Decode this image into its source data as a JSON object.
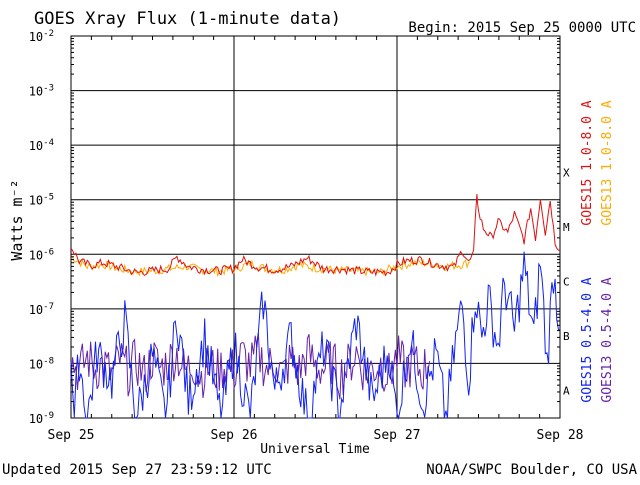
{
  "chart_data": {
    "type": "line",
    "title": "GOES Xray Flux (1-minute data)",
    "begin_text": "Begin:  2015 Sep 25 0000 UTC",
    "xlabel": "Universal Time",
    "ylabel": "Watts m⁻²",
    "x_range_days": [
      0,
      3
    ],
    "x_tick_labels": [
      "Sep 25",
      "Sep 26",
      "Sep 27",
      "Sep 28"
    ],
    "y_scale": "log",
    "y_range": [
      1e-09,
      0.01
    ],
    "y_tick_labels": [
      {
        "base": "10",
        "exp": "-2"
      },
      {
        "base": "10",
        "exp": "-3"
      },
      {
        "base": "10",
        "exp": "-4"
      },
      {
        "base": "10",
        "exp": "-5"
      },
      {
        "base": "10",
        "exp": "-6"
      },
      {
        "base": "10",
        "exp": "-7"
      },
      {
        "base": "10",
        "exp": "-8"
      },
      {
        "base": "10",
        "exp": "-9"
      }
    ],
    "flare_classes": [
      "X",
      "M",
      "C",
      "B",
      "A"
    ],
    "grid": "horizontal decades",
    "legend_placement": "right",
    "series": [
      {
        "name": "GOES15 1.0-8.0 A",
        "color": "#dd1111",
        "points": [
          [
            0.0,
            1.4e-06
          ],
          [
            0.05,
            7.5e-07
          ],
          [
            0.12,
            6.2e-07
          ],
          [
            0.2,
            7e-07
          ],
          [
            0.3,
            5.7e-07
          ],
          [
            0.4,
            4.6e-07
          ],
          [
            0.5,
            5e-07
          ],
          [
            0.6,
            5.5e-07
          ],
          [
            0.65,
            9e-07
          ],
          [
            0.72,
            6e-07
          ],
          [
            0.8,
            5.3e-07
          ],
          [
            0.9,
            5e-07
          ],
          [
            1.0,
            5.5e-07
          ],
          [
            1.05,
            8e-07
          ],
          [
            1.15,
            5.8e-07
          ],
          [
            1.25,
            5.2e-07
          ],
          [
            1.35,
            6e-07
          ],
          [
            1.45,
            8.5e-07
          ],
          [
            1.55,
            5.4e-07
          ],
          [
            1.65,
            5.4e-07
          ],
          [
            1.75,
            5e-07
          ],
          [
            1.85,
            4.7e-07
          ],
          [
            1.95,
            4.8e-07
          ],
          [
            2.0,
            6.5e-07
          ],
          [
            2.05,
            7.5e-07
          ],
          [
            2.15,
            8e-07
          ],
          [
            2.25,
            6.4e-07
          ],
          [
            2.35,
            5.8e-07
          ],
          [
            2.4,
            1.2e-06
          ],
          [
            2.44,
            7e-07
          ],
          [
            2.47,
            1e-06
          ],
          [
            2.49,
            1.4e-05
          ],
          [
            2.5,
            6e-06
          ],
          [
            2.53,
            3e-06
          ],
          [
            2.58,
            2e-06
          ],
          [
            2.62,
            4e-06
          ],
          [
            2.68,
            2.5e-06
          ],
          [
            2.72,
            5.5e-06
          ],
          [
            2.78,
            1.8e-06
          ],
          [
            2.82,
            7e-06
          ],
          [
            2.85,
            2e-06
          ],
          [
            2.88,
            1.1e-05
          ],
          [
            2.91,
            2.5e-06
          ],
          [
            2.94,
            1e-05
          ],
          [
            2.97,
            1.7e-06
          ],
          [
            3.0,
            1.2e-06
          ]
        ]
      },
      {
        "name": "GOES13 1.0-8.0 A",
        "color": "#ffaa00",
        "points": [
          [
            0.0,
            9e-07
          ],
          [
            0.1,
            6e-07
          ],
          [
            0.2,
            6.5e-07
          ],
          [
            0.3,
            5.4e-07
          ],
          [
            0.4,
            4.8e-07
          ],
          [
            0.5,
            5e-07
          ],
          [
            0.6,
            5.4e-07
          ],
          [
            0.7,
            6e-07
          ],
          [
            0.8,
            5.2e-07
          ],
          [
            0.9,
            4.9e-07
          ],
          [
            1.0,
            5.3e-07
          ],
          [
            1.1,
            6.8e-07
          ],
          [
            1.2,
            5.4e-07
          ],
          [
            1.3,
            5.2e-07
          ],
          [
            1.4,
            6.4e-07
          ],
          [
            1.5,
            5.6e-07
          ],
          [
            1.6,
            5.2e-07
          ],
          [
            1.7,
            5e-07
          ],
          [
            1.8,
            4.8e-07
          ],
          [
            1.9,
            4.7e-07
          ],
          [
            2.0,
            6e-07
          ],
          [
            2.1,
            7e-07
          ],
          [
            2.2,
            6.8e-07
          ],
          [
            2.3,
            6e-07
          ],
          [
            2.4,
            6.5e-07
          ],
          [
            2.45,
            7.2e-07
          ]
        ]
      },
      {
        "name": "GOES15 0.5-4.0 A",
        "color": "#1122ee",
        "points": [
          [
            0.0,
            2e-08
          ],
          [
            0.02,
            1e-09
          ],
          [
            0.05,
            1.3e-08
          ],
          [
            0.1,
            1e-09
          ],
          [
            0.16,
            1.6e-08
          ],
          [
            0.25,
            5e-09
          ],
          [
            0.33,
            6e-08
          ],
          [
            0.4,
            1e-09
          ],
          [
            0.5,
            1.4e-08
          ],
          [
            0.58,
            1e-09
          ],
          [
            0.65,
            8e-08
          ],
          [
            0.72,
            2e-09
          ],
          [
            0.82,
            3e-08
          ],
          [
            0.92,
            1e-09
          ],
          [
            1.0,
            2e-08
          ],
          [
            1.1,
            1e-09
          ],
          [
            1.18,
            1.5e-07
          ],
          [
            1.25,
            3e-09
          ],
          [
            1.35,
            3e-08
          ],
          [
            1.45,
            1e-09
          ],
          [
            1.55,
            2e-08
          ],
          [
            1.65,
            1.5e-09
          ],
          [
            1.75,
            6e-08
          ],
          [
            1.85,
            2e-09
          ],
          [
            1.95,
            1.8e-08
          ],
          [
            2.0,
            1e-09
          ],
          [
            2.08,
            3e-08
          ],
          [
            2.16,
            2e-09
          ],
          [
            2.24,
            1.5e-08
          ],
          [
            2.3,
            1e-09
          ],
          [
            2.36,
            2.5e-08
          ],
          [
            2.4,
            1.2e-07
          ],
          [
            2.44,
            5e-09
          ],
          [
            2.48,
            2e-07
          ],
          [
            2.52,
            3e-08
          ],
          [
            2.56,
            1.5e-07
          ],
          [
            2.62,
            2e-08
          ],
          [
            2.66,
            3e-07
          ],
          [
            2.72,
            4e-08
          ],
          [
            2.78,
            6e-07
          ],
          [
            2.84,
            3e-08
          ],
          [
            2.88,
            8e-07
          ],
          [
            2.92,
            1e-08
          ],
          [
            2.96,
            5e-07
          ],
          [
            3.0,
            4e-08
          ]
        ]
      },
      {
        "name": "GOES13 0.5-4.0 A",
        "color": "#6622aa",
        "points": [
          [
            0.0,
            1.2e-08
          ],
          [
            0.05,
            7e-09
          ],
          [
            0.1,
            1.3e-08
          ],
          [
            0.15,
            8e-09
          ],
          [
            0.2,
            1e-08
          ],
          [
            0.25,
            6e-09
          ],
          [
            0.3,
            1.2e-08
          ],
          [
            0.35,
            7e-09
          ],
          [
            0.4,
            1.1e-08
          ],
          [
            0.45,
            6e-09
          ],
          [
            0.5,
            1.3e-08
          ],
          [
            0.55,
            8e-09
          ],
          [
            0.6,
            1.1e-08
          ],
          [
            0.65,
            1.5e-08
          ],
          [
            0.7,
            7e-09
          ],
          [
            0.75,
            1e-08
          ],
          [
            0.8,
            6e-09
          ],
          [
            0.85,
            9e-09
          ],
          [
            0.9,
            7e-09
          ],
          [
            0.95,
            1e-08
          ],
          [
            1.0,
            7e-09
          ],
          [
            1.05,
            1.4e-08
          ],
          [
            1.1,
            9e-09
          ],
          [
            1.15,
            1.5e-08
          ],
          [
            1.2,
            8e-09
          ],
          [
            1.25,
            1.1e-08
          ],
          [
            1.3,
            6e-09
          ],
          [
            1.35,
            1.2e-08
          ],
          [
            1.4,
            7e-09
          ],
          [
            1.45,
            1.6e-08
          ],
          [
            1.5,
            9e-09
          ],
          [
            1.55,
            8e-09
          ],
          [
            1.6,
            1.1e-08
          ],
          [
            1.65,
            6e-09
          ],
          [
            1.7,
            9e-09
          ],
          [
            1.75,
            1.6e-08
          ],
          [
            1.8,
            7e-09
          ],
          [
            1.85,
            8e-09
          ],
          [
            1.9,
            1e-08
          ],
          [
            1.95,
            6e-09
          ],
          [
            2.0,
            1.3e-08
          ],
          [
            2.05,
            8e-09
          ],
          [
            2.1,
            1e-08
          ],
          [
            2.15,
            7e-09
          ],
          [
            2.2,
            1.1e-08
          ]
        ]
      }
    ]
  },
  "footer": {
    "updated": "Updated 2015 Sep 27 23:59:12 UTC",
    "credit": "NOAA/SWPC Boulder, CO USA"
  }
}
